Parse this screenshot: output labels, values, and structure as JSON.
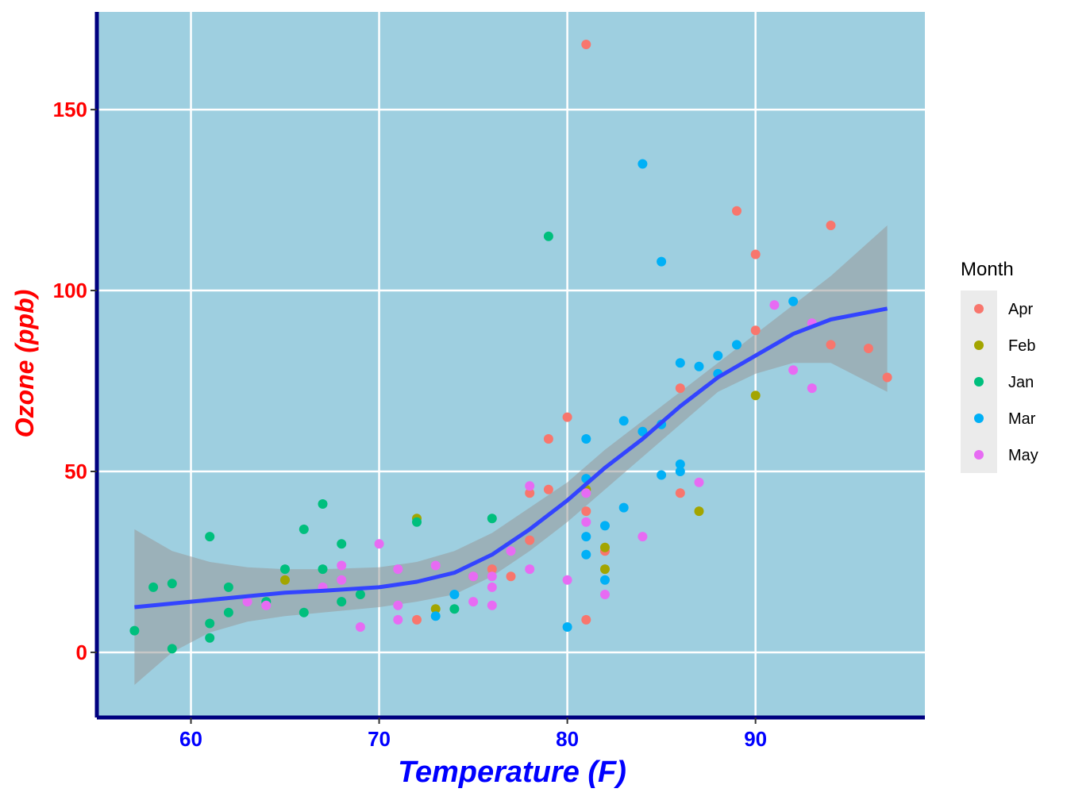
{
  "chart_data": {
    "type": "scatter",
    "title": "",
    "xlabel": "Temperature (F)",
    "ylabel": "Ozone (ppb)",
    "xlim": [
      55,
      99
    ],
    "ylim": [
      -18,
      177
    ],
    "x_ticks": [
      60,
      70,
      80,
      90
    ],
    "y_ticks": [
      0,
      50,
      100,
      150
    ],
    "x_tick_labels": [
      "60",
      "70",
      "80",
      "90"
    ],
    "y_tick_labels": [
      "0",
      "50",
      "100",
      "150"
    ],
    "grid": true,
    "panel_background": "#9ecfe0",
    "grid_color": "#ffffff",
    "axis_line_color": "#00007f",
    "xlabel_color": "#0000ff",
    "ylabel_color": "#ff0000",
    "legend": {
      "title": "Month",
      "position": "right",
      "entries": [
        "Apr",
        "Feb",
        "Jan",
        "Mar",
        "May"
      ]
    },
    "series": [
      {
        "name": "Apr",
        "color": "#F8766D",
        "points": [
          [
            81,
            168
          ],
          [
            89,
            122
          ],
          [
            94,
            118
          ],
          [
            90,
            110
          ],
          [
            90,
            89
          ],
          [
            94,
            85
          ],
          [
            96,
            84
          ],
          [
            97,
            76
          ],
          [
            86,
            73
          ],
          [
            80,
            65
          ],
          [
            79,
            59
          ],
          [
            79,
            45
          ],
          [
            78,
            44
          ],
          [
            86,
            44
          ],
          [
            81,
            39
          ],
          [
            78,
            31
          ],
          [
            82,
            28
          ],
          [
            76,
            23
          ],
          [
            77,
            21
          ],
          [
            72,
            9
          ],
          [
            81,
            9
          ],
          [
            75,
            21
          ]
        ]
      },
      {
        "name": "Feb",
        "color": "#A3A500",
        "points": [
          [
            90,
            71
          ],
          [
            87,
            39
          ],
          [
            72,
            37
          ],
          [
            82,
            29
          ],
          [
            82,
            23
          ],
          [
            65,
            20
          ],
          [
            73,
            12
          ],
          [
            81,
            45
          ]
        ]
      },
      {
        "name": "Jan",
        "color": "#00BF7D",
        "points": [
          [
            79,
            115
          ],
          [
            67,
            41
          ],
          [
            76,
            37
          ],
          [
            72,
            36
          ],
          [
            66,
            34
          ],
          [
            61,
            32
          ],
          [
            68,
            30
          ],
          [
            65,
            23
          ],
          [
            67,
            23
          ],
          [
            58,
            18
          ],
          [
            59,
            19
          ],
          [
            62,
            18
          ],
          [
            69,
            16
          ],
          [
            68,
            14
          ],
          [
            64,
            14
          ],
          [
            62,
            11
          ],
          [
            66,
            11
          ],
          [
            74,
            12
          ],
          [
            61,
            8
          ],
          [
            57,
            6
          ],
          [
            61,
            4
          ],
          [
            59,
            1
          ]
        ]
      },
      {
        "name": "Mar",
        "color": "#00B0F6",
        "points": [
          [
            84,
            135
          ],
          [
            85,
            108
          ],
          [
            92,
            97
          ],
          [
            89,
            85
          ],
          [
            88,
            82
          ],
          [
            86,
            80
          ],
          [
            87,
            79
          ],
          [
            88,
            77
          ],
          [
            83,
            64
          ],
          [
            85,
            63
          ],
          [
            84,
            61
          ],
          [
            81,
            59
          ],
          [
            86,
            52
          ],
          [
            86,
            50
          ],
          [
            85,
            49
          ],
          [
            81,
            48
          ],
          [
            83,
            40
          ],
          [
            82,
            35
          ],
          [
            81,
            32
          ],
          [
            81,
            27
          ],
          [
            82,
            20
          ],
          [
            74,
            16
          ],
          [
            73,
            10
          ],
          [
            80,
            7
          ]
        ]
      },
      {
        "name": "May",
        "color": "#E76BF3",
        "points": [
          [
            91,
            96
          ],
          [
            93,
            91
          ],
          [
            92,
            78
          ],
          [
            93,
            73
          ],
          [
            87,
            47
          ],
          [
            78,
            46
          ],
          [
            81,
            44
          ],
          [
            81,
            36
          ],
          [
            84,
            32
          ],
          [
            70,
            30
          ],
          [
            77,
            28
          ],
          [
            68,
            24
          ],
          [
            73,
            24
          ],
          [
            71,
            23
          ],
          [
            78,
            23
          ],
          [
            75,
            21
          ],
          [
            76,
            21
          ],
          [
            68,
            20
          ],
          [
            80,
            20
          ],
          [
            67,
            18
          ],
          [
            76,
            18
          ],
          [
            82,
            16
          ],
          [
            63,
            14
          ],
          [
            64,
            13
          ],
          [
            71,
            13
          ],
          [
            76,
            13
          ],
          [
            75,
            14
          ],
          [
            71,
            9
          ],
          [
            69,
            7
          ]
        ]
      }
    ],
    "smooth": {
      "color": "#3344ff",
      "band_color": "#999999",
      "line": [
        [
          57,
          12.5
        ],
        [
          60,
          14
        ],
        [
          63,
          15.5
        ],
        [
          65,
          16.5
        ],
        [
          67,
          17
        ],
        [
          70,
          18
        ],
        [
          72,
          19.5
        ],
        [
          74,
          22
        ],
        [
          76,
          27
        ],
        [
          78,
          34
        ],
        [
          80,
          42
        ],
        [
          82,
          51
        ],
        [
          84,
          59
        ],
        [
          86,
          68
        ],
        [
          88,
          76
        ],
        [
          90,
          82
        ],
        [
          92,
          88
        ],
        [
          94,
          92
        ],
        [
          97,
          95
        ]
      ],
      "upper": [
        [
          57,
          34
        ],
        [
          59,
          28
        ],
        [
          61,
          25
        ],
        [
          63,
          23.5
        ],
        [
          65,
          23
        ],
        [
          67,
          23
        ],
        [
          70,
          23.5
        ],
        [
          72,
          25
        ],
        [
          74,
          28
        ],
        [
          76,
          33
        ],
        [
          78,
          40
        ],
        [
          80,
          47
        ],
        [
          82,
          56
        ],
        [
          84,
          64
        ],
        [
          86,
          72
        ],
        [
          88,
          80
        ],
        [
          90,
          88
        ],
        [
          92,
          96
        ],
        [
          94,
          104
        ],
        [
          97,
          118
        ]
      ],
      "lower": [
        [
          57,
          -9
        ],
        [
          59,
          0
        ],
        [
          61,
          5.5
        ],
        [
          63,
          8.5
        ],
        [
          65,
          10
        ],
        [
          67,
          11
        ],
        [
          70,
          12.5
        ],
        [
          72,
          14
        ],
        [
          74,
          16
        ],
        [
          76,
          21
        ],
        [
          78,
          28
        ],
        [
          80,
          36
        ],
        [
          82,
          45
        ],
        [
          84,
          54
        ],
        [
          86,
          63
        ],
        [
          88,
          72
        ],
        [
          90,
          77
        ],
        [
          92,
          80
        ],
        [
          94,
          80
        ],
        [
          97,
          72
        ]
      ]
    }
  }
}
